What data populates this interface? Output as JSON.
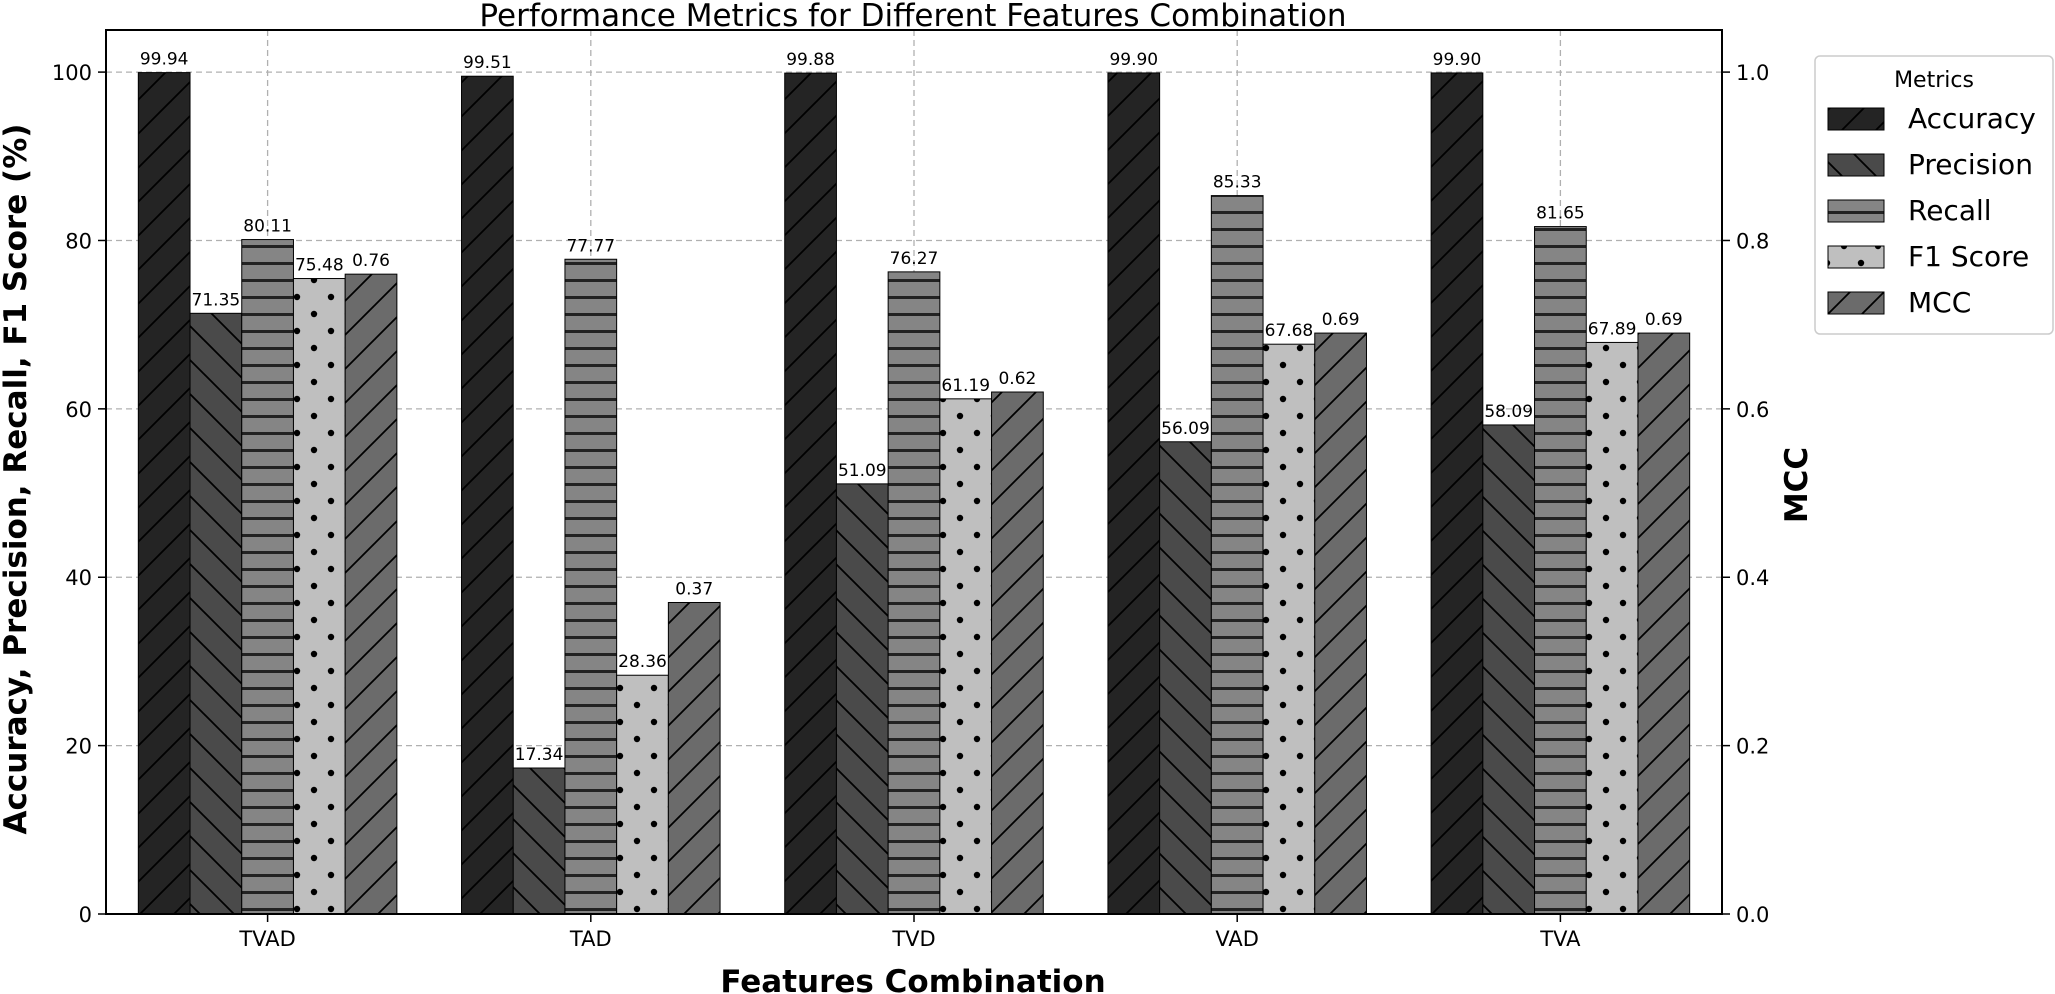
{
  "chart_data": {
    "type": "bar",
    "title": "Performance Metrics for Different Features Combination",
    "xlabel": "Features Combination",
    "ylabel": "Accuracy, Precision, Recall, F1 Score (%)",
    "y2label": "MCC",
    "categories": [
      "TVAD",
      "TAD",
      "TVD",
      "VAD",
      "TVA"
    ],
    "ylim": [
      0,
      105
    ],
    "y2lim": [
      0,
      1.05
    ],
    "yticks": [
      0,
      20,
      40,
      60,
      80,
      100
    ],
    "y2ticks": [
      "0.0",
      "0.2",
      "0.4",
      "0.6",
      "0.8",
      "1.0"
    ],
    "grid": true,
    "legend_title": "Metrics",
    "legend_position": "outside-top-right",
    "series": [
      {
        "name": "Accuracy",
        "axis": "left",
        "color": "#242424",
        "hatch": "slash",
        "values": [
          99.94,
          99.51,
          99.88,
          99.9,
          99.9
        ],
        "labels": [
          "99.94",
          "99.51",
          "99.88",
          "99.90",
          "99.90"
        ]
      },
      {
        "name": "Precision",
        "axis": "left",
        "color": "#4a4a4a",
        "hatch": "backslash",
        "values": [
          71.35,
          17.34,
          51.09,
          56.09,
          58.09
        ],
        "labels": [
          "71.35",
          "17.34",
          "51.09",
          "56.09",
          "58.09"
        ]
      },
      {
        "name": "Recall",
        "axis": "left",
        "color": "#858585",
        "hatch": "horizontal",
        "values": [
          80.11,
          77.77,
          76.27,
          85.33,
          81.65
        ],
        "labels": [
          "80.11",
          "77.77",
          "76.27",
          "85.33",
          "81.65"
        ]
      },
      {
        "name": "F1 Score",
        "axis": "left",
        "color": "#bfbfbf",
        "hatch": "dots",
        "values": [
          75.48,
          28.36,
          61.19,
          67.68,
          67.89
        ],
        "labels": [
          "75.48",
          "28.36",
          "61.19",
          "67.68",
          "67.89"
        ]
      },
      {
        "name": "MCC",
        "axis": "right",
        "color": "#6b6b6b",
        "hatch": "slash",
        "values": [
          0.76,
          0.37,
          0.62,
          0.69,
          0.69
        ],
        "labels": [
          "0.76",
          "0.37",
          "0.62",
          "0.69",
          "0.69"
        ]
      }
    ]
  }
}
